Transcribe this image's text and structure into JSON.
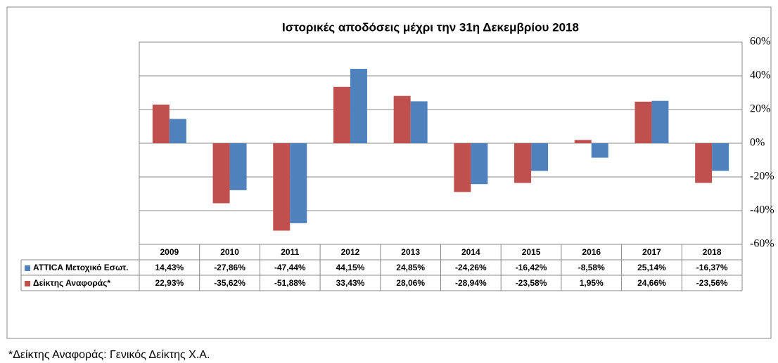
{
  "chart_data": {
    "type": "bar",
    "title": "Ιστορικές αποδόσεις μέχρι την 31η Δεκεμβρίου 2018",
    "categories": [
      "2009",
      "2010",
      "2011",
      "2012",
      "2013",
      "2014",
      "2015",
      "2016",
      "2017",
      "2018"
    ],
    "series": [
      {
        "name": "ATTICA Μετοχικό Εσωτ.",
        "color": "#4f81bd",
        "values": [
          14.43,
          -27.86,
          -47.44,
          44.15,
          24.85,
          -24.26,
          -16.42,
          -8.58,
          25.14,
          -16.37
        ],
        "value_labels": [
          "14,43%",
          "-27,86%",
          "-47,44%",
          "44,15%",
          "24,85%",
          "-24,26%",
          "-16,42%",
          "-8,58%",
          "25,14%",
          "-16,37%"
        ]
      },
      {
        "name": "Δείκτης Αναφοράς*",
        "color": "#c0504d",
        "values": [
          22.93,
          -35.62,
          -51.88,
          33.43,
          28.06,
          -28.94,
          -23.58,
          1.95,
          24.66,
          -23.56
        ],
        "value_labels": [
          "22,93%",
          "-35,62%",
          "-51,88%",
          "33,43%",
          "28,06%",
          "-28,94%",
          "-23,58%",
          "1,95%",
          "24,66%",
          "-23,56%"
        ]
      }
    ],
    "ylim": [
      -60,
      60
    ],
    "yticks": [
      {
        "value": 60,
        "label": "60%"
      },
      {
        "value": 40,
        "label": "40%"
      },
      {
        "value": 20,
        "label": "20%"
      },
      {
        "value": 0,
        "label": "0%"
      },
      {
        "value": -20,
        "label": "-20%"
      },
      {
        "value": -40,
        "label": "-40%"
      },
      {
        "value": -60,
        "label": "-60%"
      }
    ],
    "grid": true,
    "footnote": "*Δείκτης Αναφοράς: Γενικός Δείκτης Χ.Α."
  }
}
